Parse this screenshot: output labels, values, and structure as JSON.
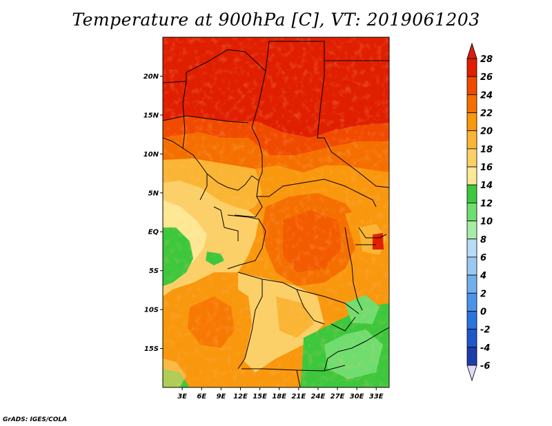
{
  "title": "Temperature at 900hPa [C], VT: 2019061203",
  "credit": "GrADS: IGES/COLA",
  "map": {
    "lat_range": [
      -20,
      25
    ],
    "lon_range": [
      0,
      35
    ],
    "lat_labels": [
      {
        "value": 20,
        "text": "20N"
      },
      {
        "value": 15,
        "text": "15N"
      },
      {
        "value": 10,
        "text": "10N"
      },
      {
        "value": 5,
        "text": "5N"
      },
      {
        "value": 0,
        "text": "EQ"
      },
      {
        "value": -5,
        "text": "5S"
      },
      {
        "value": -10,
        "text": "10S"
      },
      {
        "value": -15,
        "text": "15S"
      }
    ],
    "lon_labels": [
      {
        "value": 3,
        "text": "3E"
      },
      {
        "value": 6,
        "text": "6E"
      },
      {
        "value": 9,
        "text": "9E"
      },
      {
        "value": 12,
        "text": "12E"
      },
      {
        "value": 15,
        "text": "15E"
      },
      {
        "value": 18,
        "text": "18E"
      },
      {
        "value": 21,
        "text": "21E"
      },
      {
        "value": 24,
        "text": "24E"
      },
      {
        "value": 27,
        "text": "27E"
      },
      {
        "value": 30,
        "text": "30E"
      },
      {
        "value": 33,
        "text": "33E"
      }
    ]
  },
  "colorbar": {
    "levels": [
      "28",
      "26",
      "24",
      "22",
      "20",
      "18",
      "16",
      "14",
      "12",
      "10",
      "8",
      "6",
      "4",
      "2",
      "0",
      "-2",
      "-4",
      "-6"
    ],
    "colors": [
      "#e01e00",
      "#f04a00",
      "#f56f00",
      "#f9970d",
      "#fbb534",
      "#fcd069",
      "#fde896",
      "#3dc73d",
      "#6fdd6f",
      "#a5eda5",
      "#b9dcf5",
      "#9bc8f0",
      "#6fb0ec",
      "#4a93e8",
      "#2a74dd",
      "#1f57c8",
      "#1d3caa",
      "#0f1a6e"
    ],
    "top_arrow_color": "#d42010",
    "bottom_arrow_color": "#dcdcf5"
  }
}
